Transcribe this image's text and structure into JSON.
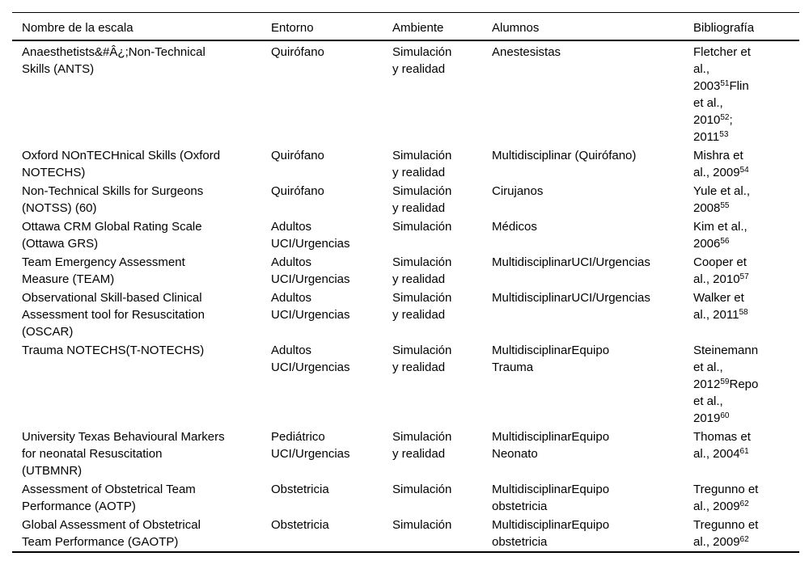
{
  "colors": {
    "text": "#000000",
    "background": "#ffffff",
    "rule": "#000000"
  },
  "table": {
    "columns": [
      {
        "key": "nombre",
        "label": "Nombre de la escala"
      },
      {
        "key": "entorno",
        "label": "Entorno"
      },
      {
        "key": "ambiente",
        "label": "Ambiente"
      },
      {
        "key": "alumnos",
        "label": "Alumnos"
      },
      {
        "key": "bibliografia",
        "label": "Bibliografía"
      }
    ],
    "superscript_delimiter": "^",
    "rows": [
      {
        "nombre": "Anaesthetists&#Â¿;Non-Technical\nSkills (ANTS)",
        "entorno": "Quirófano",
        "ambiente": "Simulación\ny realidad",
        "alumnos": "Anestesistas",
        "bibliografia": "Fletcher et\nal.,\n2003^51^Flin\net al.,\n2010^52^;\n2011^53"
      },
      {
        "nombre": "Oxford NOnTECHnical Skills (Oxford\nNOTECHS)",
        "entorno": "Quirófano",
        "ambiente": "Simulación\ny realidad",
        "alumnos": "Multidisciplinar (Quirófano)",
        "bibliografia": "Mishra et\nal., 2009^54"
      },
      {
        "nombre": "Non-Technical Skills for Surgeons\n(NOTSS) (60)",
        "entorno": "Quirófano",
        "ambiente": "Simulación\ny realidad",
        "alumnos": "Cirujanos",
        "bibliografia": "Yule et al.,\n2008^55"
      },
      {
        "nombre": "Ottawa CRM Global Rating Scale\n(Ottawa GRS)",
        "entorno": "Adultos\nUCI/Urgencias",
        "ambiente": "Simulación",
        "alumnos": "Médicos",
        "bibliografia": "Kim et al.,\n2006^56"
      },
      {
        "nombre": "Team Emergency Assessment\nMeasure (TEAM)",
        "entorno": "Adultos\nUCI/Urgencias",
        "ambiente": "Simulación\ny realidad",
        "alumnos": "MultidisciplinarUCI/Urgencias",
        "bibliografia": "Cooper et\nal., 2010^57"
      },
      {
        "nombre": "Observational Skill-based Clinical\nAssessment tool for Resuscitation\n(OSCAR)",
        "entorno": "Adultos\nUCI/Urgencias",
        "ambiente": "Simulación\ny realidad",
        "alumnos": "MultidisciplinarUCI/Urgencias",
        "bibliografia": "Walker et\nal., 2011^58"
      },
      {
        "nombre": "Trauma NOTECHS(T-NOTECHS)",
        "entorno": "Adultos\nUCI/Urgencias",
        "ambiente": "Simulación\ny realidad",
        "alumnos": "MultidisciplinarEquipo\nTrauma",
        "bibliografia": "Steinemann\net al.,\n2012^59^Repo\net al.,\n2019^60"
      },
      {
        "nombre": "University Texas Behavioural Markers\nfor neonatal Resuscitation\n(UTBMNR)",
        "entorno": "Pediátrico\nUCI/Urgencias",
        "ambiente": "Simulación\ny realidad",
        "alumnos": "MultidisciplinarEquipo\nNeonato",
        "bibliografia": "Thomas et\nal., 2004^61"
      },
      {
        "nombre": "Assessment of Obstetrical Team\nPerformance (AOTP)",
        "entorno": "Obstetricia",
        "ambiente": "Simulación",
        "alumnos": "MultidisciplinarEquipo\nobstetricia",
        "bibliografia": "Tregunno et\nal., 2009^62"
      },
      {
        "nombre": "Global Assessment of Obstetrical\nTeam Performance (GAOTP)",
        "entorno": "Obstetricia",
        "ambiente": "Simulación",
        "alumnos": "MultidisciplinarEquipo\nobstetricia",
        "bibliografia": "Tregunno et\nal., 2009^62"
      }
    ]
  }
}
